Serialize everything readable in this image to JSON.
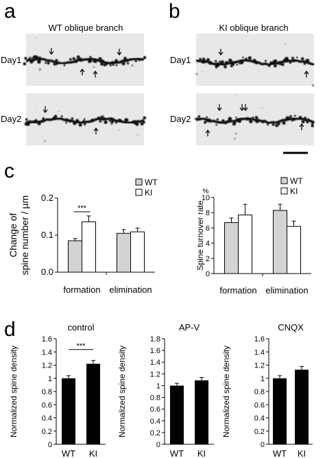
{
  "panels": {
    "a": {
      "letter": "a",
      "title": "WT oblique branch",
      "rows": [
        {
          "label": "Day1"
        },
        {
          "label": "Day2"
        }
      ]
    },
    "b": {
      "letter": "b",
      "title": "KI oblique branch",
      "rows": [
        {
          "label": "Day1"
        },
        {
          "label": "Day2"
        }
      ]
    },
    "c": {
      "letter": "c"
    },
    "d": {
      "letter": "d"
    }
  },
  "colors": {
    "wt": "#d3d3d3",
    "ki": "#ffffff",
    "black": "#000000",
    "image_bg": "#e6e6e6"
  },
  "chart_data": [
    {
      "id": "c-left",
      "type": "bar",
      "title": "",
      "xlabel": "",
      "ylabel": "Change of spine number / µm",
      "ylabel_lines": [
        "Change of",
        "spine number / µm"
      ],
      "ylim": [
        0,
        0.2
      ],
      "yticks": [
        0,
        0.1,
        0.2
      ],
      "ytick_labels": [
        "0.0",
        "0.1",
        "0.2"
      ],
      "categories": [
        "formation",
        "elimination"
      ],
      "series": [
        {
          "name": "WT",
          "values": [
            0.085,
            0.105
          ],
          "errors": [
            0.006,
            0.01
          ]
        },
        {
          "name": "KI",
          "values": [
            0.136,
            0.109
          ],
          "errors": [
            0.016,
            0.01
          ]
        }
      ],
      "significance": [
        {
          "category": 0,
          "label": "***"
        }
      ],
      "legend": "top-right"
    },
    {
      "id": "c-right",
      "type": "bar",
      "title": "",
      "xlabel": "",
      "ylabel": "Spine turnover rate",
      "unit_label": "%",
      "ylim": [
        0,
        10
      ],
      "yticks": [
        0,
        2,
        4,
        6,
        8,
        10
      ],
      "ytick_labels": [
        "0",
        "2",
        "4",
        "6",
        "8",
        "10"
      ],
      "categories": [
        "formation",
        "elimination"
      ],
      "series": [
        {
          "name": "WT",
          "values": [
            6.7,
            8.3
          ],
          "errors": [
            0.6,
            0.8
          ]
        },
        {
          "name": "KI",
          "values": [
            7.7,
            6.2
          ],
          "errors": [
            1.4,
            0.7
          ]
        }
      ],
      "legend": "top-right"
    },
    {
      "id": "d-control",
      "type": "bar",
      "title": "control",
      "ylabel": "Normalized spine density",
      "ylim": [
        0,
        1.6
      ],
      "yticks": [
        0,
        0.2,
        0.4,
        0.6,
        0.8,
        1,
        1.2,
        1.4,
        1.6
      ],
      "ytick_labels": [
        "0",
        "0.2",
        "0.4",
        "0.6",
        "0.8",
        "1",
        "1.2",
        "1.4",
        "1.6"
      ],
      "categories": [
        "WT",
        "KI"
      ],
      "values": [
        1.0,
        1.22
      ],
      "errors": [
        0.04,
        0.05
      ],
      "significance": [
        {
          "between": [
            0,
            1
          ],
          "label": "***"
        }
      ]
    },
    {
      "id": "d-apv",
      "type": "bar",
      "title": "AP-V",
      "ylabel": "Normalized spine density",
      "ylim": [
        0,
        1.8
      ],
      "yticks": [
        0,
        0.2,
        0.4,
        0.6,
        0.8,
        1,
        1.2,
        1.4,
        1.6,
        1.8
      ],
      "ytick_labels": [
        "0",
        "0.2",
        "0.4",
        "0.6",
        "0.8",
        "1",
        "1.2",
        "1.4",
        "1.6",
        "1.8"
      ],
      "categories": [
        "WT",
        "KI"
      ],
      "values": [
        1.0,
        1.09
      ],
      "errors": [
        0.04,
        0.05
      ]
    },
    {
      "id": "d-cnqx",
      "type": "bar",
      "title": "CNQX",
      "ylabel": "Normalized spine density",
      "ylim": [
        0,
        1.6
      ],
      "yticks": [
        0,
        0.2,
        0.4,
        0.6,
        0.8,
        1,
        1.2,
        1.4,
        1.6
      ],
      "ytick_labels": [
        "0",
        "0.2",
        "0.4",
        "0.6",
        "0.8",
        "1",
        "1.2",
        "1.4",
        "1.6"
      ],
      "categories": [
        "WT",
        "KI"
      ],
      "values": [
        1.0,
        1.13
      ],
      "errors": [
        0.04,
        0.05
      ]
    }
  ]
}
